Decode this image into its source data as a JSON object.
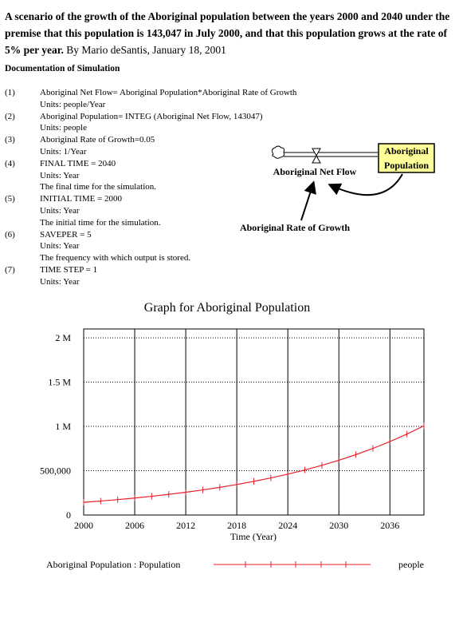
{
  "header": {
    "title": "A scenario of the growth of the Aboriginal population between the years 2000 and 2040 under the premise that this population is 143,047 in July 2000, and that this population grows at the rate of 5% per year.",
    "byline": "By Mario deSantis, January 18, 2001"
  },
  "documentation": {
    "title": "Documentation of Simulation",
    "items": [
      {
        "number": "(1)",
        "lines": [
          "Aboriginal Net Flow= Aboriginal Population*Aboriginal Rate of Growth",
          "Units: people/Year"
        ]
      },
      {
        "number": "(2)",
        "lines": [
          "Aboriginal Population= INTEG (Aboriginal Net Flow, 143047)",
          "Units: people"
        ]
      },
      {
        "number": "(3)",
        "lines": [
          "Aboriginal Rate of Growth=0.05",
          "Units: 1/Year"
        ]
      },
      {
        "number": "(4)",
        "lines": [
          "FINAL TIME  = 2040",
          "Units: Year",
          "The final time for the simulation."
        ]
      },
      {
        "number": "(5)",
        "lines": [
          "INITIAL TIME  = 2000",
          "Units: Year",
          "The initial time for the simulation."
        ]
      },
      {
        "number": "(6)",
        "lines": [
          "SAVEPER  = 5",
          "Units: Year",
          "The frequency with which output is stored."
        ]
      },
      {
        "number": "(7)",
        "lines": [
          "TIME STEP  = 1",
          "Units: Year"
        ]
      }
    ]
  },
  "diagram": {
    "stock": [
      "Aboriginal",
      "Population"
    ],
    "flow": "Aboriginal Net Flow",
    "rate": "Aboriginal Rate of Growth"
  },
  "chart_data": {
    "type": "line",
    "title": "Graph for Aboriginal Population",
    "x_label": "Time (Year)",
    "x": [
      2000,
      2002,
      2004,
      2006,
      2008,
      2010,
      2012,
      2014,
      2016,
      2018,
      2020,
      2022,
      2024,
      2026,
      2028,
      2030,
      2032,
      2034,
      2036,
      2038,
      2040
    ],
    "series": [
      {
        "name": "Aboriginal Population : Population",
        "color": "#e8202a",
        "values": [
          143047,
          157709,
          173874,
          191697,
          211345,
          233007,
          256891,
          283222,
          312253,
          344259,
          379547,
          418450,
          461342,
          508630,
          560764,
          618242,
          681613,
          751478,
          828504,
          913426,
          1007052
        ]
      }
    ],
    "units": "people",
    "xlim": [
      2000,
      2040
    ],
    "xticks": [
      2000,
      2006,
      2012,
      2018,
      2024,
      2030,
      2036
    ],
    "ylim": [
      0,
      2100000
    ],
    "yticks": [
      0,
      {
        "value": 500000,
        "label": "500,000"
      },
      {
        "value": 1000000,
        "label": "1 M"
      },
      {
        "value": 1500000,
        "label": "1.5 M"
      },
      {
        "value": 2000000,
        "label": "2 M"
      }
    ],
    "grid": true
  }
}
